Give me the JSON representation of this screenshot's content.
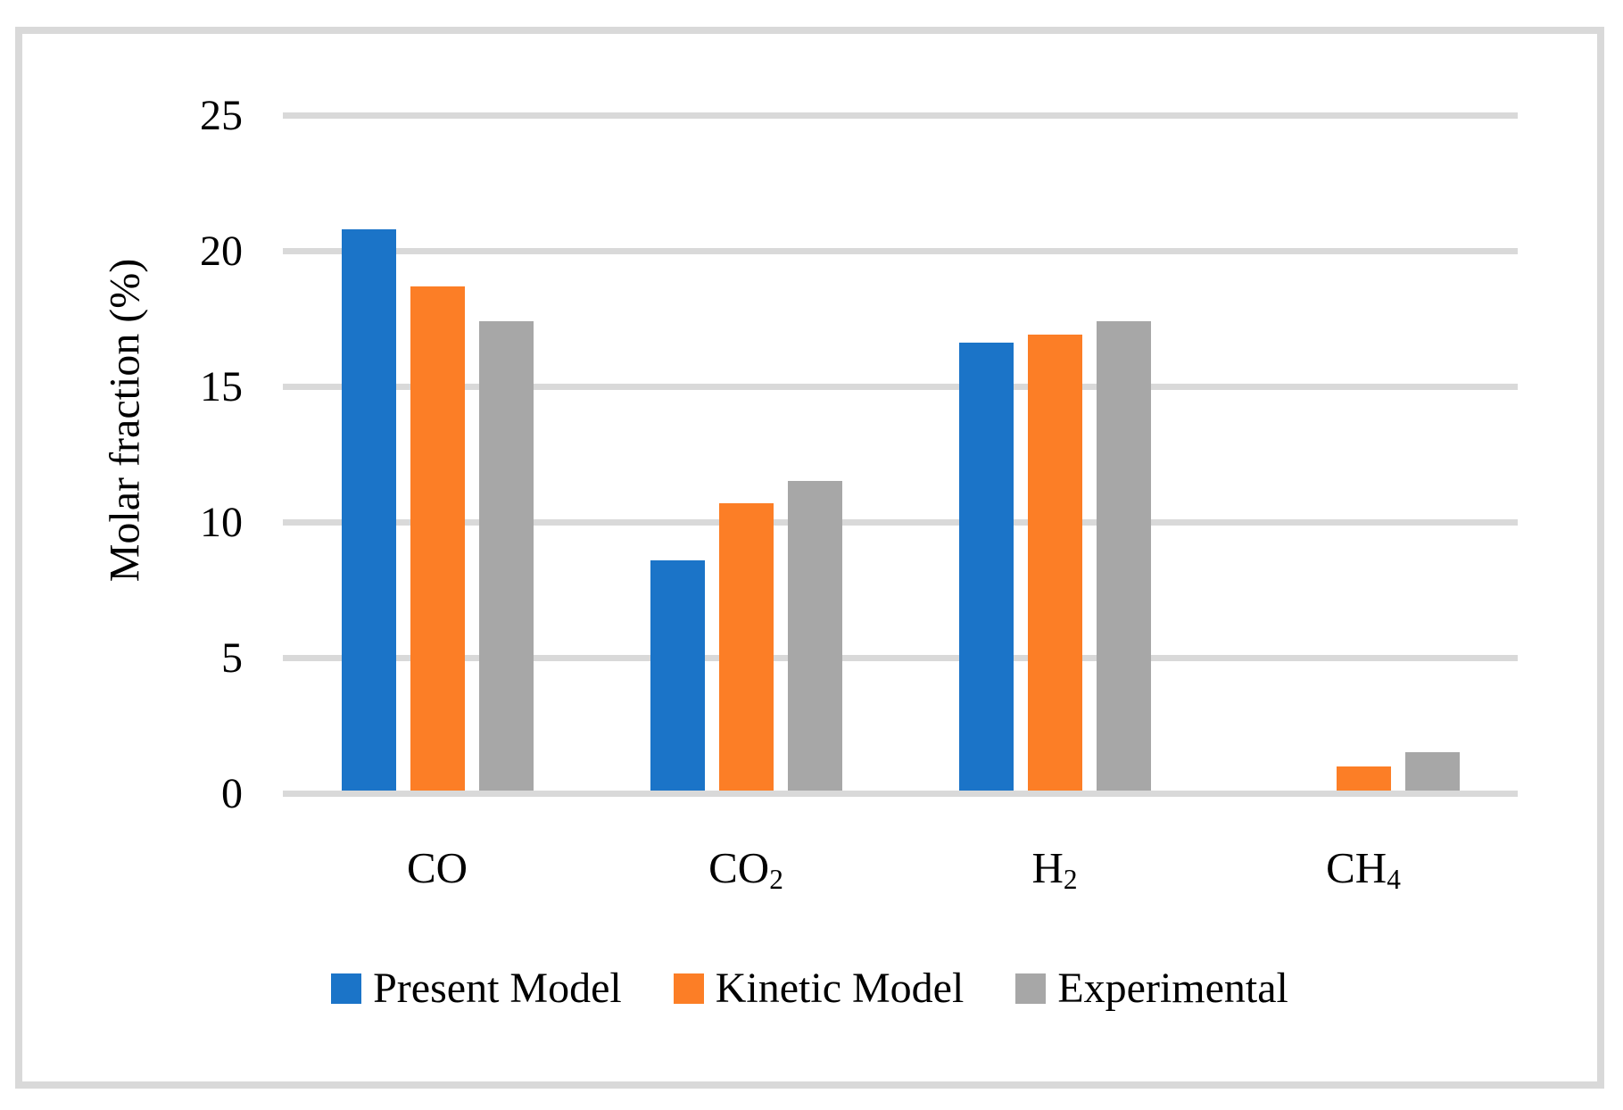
{
  "figure": {
    "background_color": "#FFFFFF",
    "frame_border_color": "#D9D9D9",
    "gridline_color": "#D9D9D9"
  },
  "chart_data": {
    "type": "bar",
    "title": "",
    "xlabel": "",
    "ylabel": "Molar fraction (%)",
    "ylim": [
      0,
      25
    ],
    "yticks": [
      "0",
      "5",
      "10",
      "15",
      "20",
      "25"
    ],
    "grid": "horizontal",
    "legend_position": "bottom-center",
    "categories": [
      {
        "text": "CO",
        "sub": ""
      },
      {
        "text": "CO",
        "sub": "2"
      },
      {
        "text": "H",
        "sub": "2"
      },
      {
        "text": "CH",
        "sub": "4"
      }
    ],
    "series": [
      {
        "name": "Present Model",
        "color": "#1B74C8",
        "values": [
          20.7,
          8.5,
          16.5,
          0
        ]
      },
      {
        "name": "Kinetic Model",
        "color": "#FC7E26",
        "values": [
          18.6,
          10.6,
          16.8,
          0.9
        ]
      },
      {
        "name": "Experimental",
        "color": "#A7A7A7",
        "values": [
          17.3,
          11.4,
          17.3,
          1.4
        ]
      }
    ]
  }
}
